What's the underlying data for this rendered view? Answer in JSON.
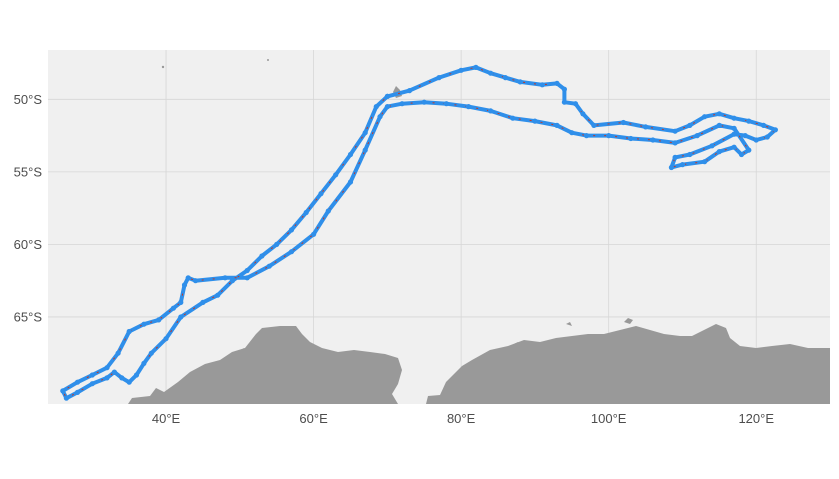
{
  "map": {
    "type": "track-map",
    "projection": "equirectangular",
    "lon_range": [
      24,
      130
    ],
    "lat_range": [
      -71,
      -46.6
    ],
    "x_ticks": [
      {
        "value": 40,
        "label": "40°E"
      },
      {
        "value": 60,
        "label": "60°E"
      },
      {
        "value": 80,
        "label": "80°E"
      },
      {
        "value": 100,
        "label": "100°E"
      },
      {
        "value": 120,
        "label": "120°E"
      }
    ],
    "y_ticks": [
      {
        "value": -50,
        "label": "50°S"
      },
      {
        "value": -55,
        "label": "55°S"
      },
      {
        "value": -60,
        "label": "60°S"
      },
      {
        "value": -65,
        "label": "65°S"
      }
    ],
    "grid": true,
    "colors": {
      "panel_bg": "#f0f0f0",
      "grid": "#d6d6d6",
      "land": "#999999",
      "track_point": "#2f8fea",
      "track_line": "#c0392b",
      "tick_text": "#4d4d4d"
    }
  },
  "chart_data": {
    "type": "scatter",
    "title": "",
    "xlabel": "",
    "ylabel": "",
    "xlim": [
      24,
      130
    ],
    "ylim": [
      -71,
      -46.6
    ],
    "series": [
      {
        "points": [
          [
            70,
            -49.8
          ],
          [
            73,
            -49.4
          ],
          [
            77,
            -48.5
          ],
          [
            80,
            -48
          ],
          [
            82,
            -47.8
          ],
          [
            84,
            -48.2
          ],
          [
            86,
            -48.5
          ],
          [
            88,
            -48.8
          ],
          [
            91,
            -49
          ],
          [
            93,
            -48.9
          ],
          [
            94,
            -49.3
          ],
          [
            94,
            -50.2
          ],
          [
            95.5,
            -50.3
          ],
          [
            96.5,
            -51
          ],
          [
            98,
            -51.8
          ],
          [
            102,
            -51.6
          ],
          [
            105,
            -51.9
          ],
          [
            109,
            -52.2
          ],
          [
            111,
            -51.8
          ],
          [
            113,
            -51.2
          ],
          [
            115,
            -51
          ],
          [
            117,
            -51.3
          ],
          [
            119,
            -51.5
          ],
          [
            121,
            -51.8
          ],
          [
            122.6,
            -52.1
          ],
          [
            121.5,
            -52.6
          ],
          [
            120,
            -52.8
          ],
          [
            118.5,
            -52.5
          ],
          [
            117,
            -52.4
          ],
          [
            114,
            -53.2
          ],
          [
            111,
            -53.8
          ],
          [
            109,
            -54
          ],
          [
            108.5,
            -54.7
          ],
          [
            110,
            -54.5
          ],
          [
            113,
            -54.3
          ],
          [
            115,
            -53.6
          ],
          [
            117,
            -53.3
          ],
          [
            118,
            -53.8
          ],
          [
            119,
            -53.5
          ],
          [
            117,
            -52
          ],
          [
            115,
            -51.8
          ],
          [
            112,
            -52.5
          ],
          [
            109,
            -53
          ],
          [
            106,
            -52.8
          ],
          [
            103,
            -52.7
          ],
          [
            100,
            -52.5
          ],
          [
            97,
            -52.5
          ],
          [
            95,
            -52.3
          ],
          [
            93,
            -51.8
          ],
          [
            90,
            -51.5
          ],
          [
            87,
            -51.3
          ],
          [
            84,
            -50.8
          ],
          [
            81,
            -50.5
          ],
          [
            78,
            -50.3
          ],
          [
            75,
            -50.2
          ],
          [
            72,
            -50.3
          ],
          [
            70,
            -50.5
          ],
          [
            69,
            -51.2
          ],
          [
            67,
            -53.5
          ],
          [
            65,
            -55.7
          ],
          [
            62,
            -57.7
          ],
          [
            60,
            -59.3
          ],
          [
            57,
            -60.5
          ],
          [
            54,
            -61.5
          ],
          [
            51,
            -62.3
          ],
          [
            48,
            -62.3
          ],
          [
            44,
            -62.5
          ],
          [
            43,
            -62.3
          ],
          [
            42.5,
            -62.8
          ],
          [
            42,
            -64
          ],
          [
            41,
            -64.4
          ],
          [
            39,
            -65.2
          ],
          [
            37,
            -65.5
          ],
          [
            35,
            -66
          ],
          [
            33.5,
            -67.5
          ],
          [
            32,
            -68.5
          ],
          [
            30,
            -69
          ],
          [
            28,
            -69.5
          ],
          [
            26,
            -70.1
          ],
          [
            26.5,
            -70.6
          ],
          [
            28,
            -70.2
          ],
          [
            30,
            -69.6
          ],
          [
            32,
            -69.2
          ],
          [
            33,
            -68.8
          ],
          [
            34,
            -69.2
          ],
          [
            35,
            -69.5
          ],
          [
            36,
            -69
          ],
          [
            37,
            -68.2
          ],
          [
            38,
            -67.5
          ],
          [
            40,
            -66.5
          ],
          [
            42,
            -65
          ],
          [
            45,
            -64
          ],
          [
            47,
            -63.5
          ],
          [
            49,
            -62.5
          ],
          [
            51,
            -61.8
          ],
          [
            53,
            -60.8
          ],
          [
            55,
            -60
          ],
          [
            57,
            -59
          ],
          [
            59,
            -57.8
          ],
          [
            61,
            -56.5
          ],
          [
            63,
            -55.2
          ],
          [
            65,
            -53.8
          ],
          [
            67,
            -52.3
          ],
          [
            68.5,
            -50.5
          ],
          [
            70,
            -49.8
          ]
        ]
      }
    ]
  }
}
